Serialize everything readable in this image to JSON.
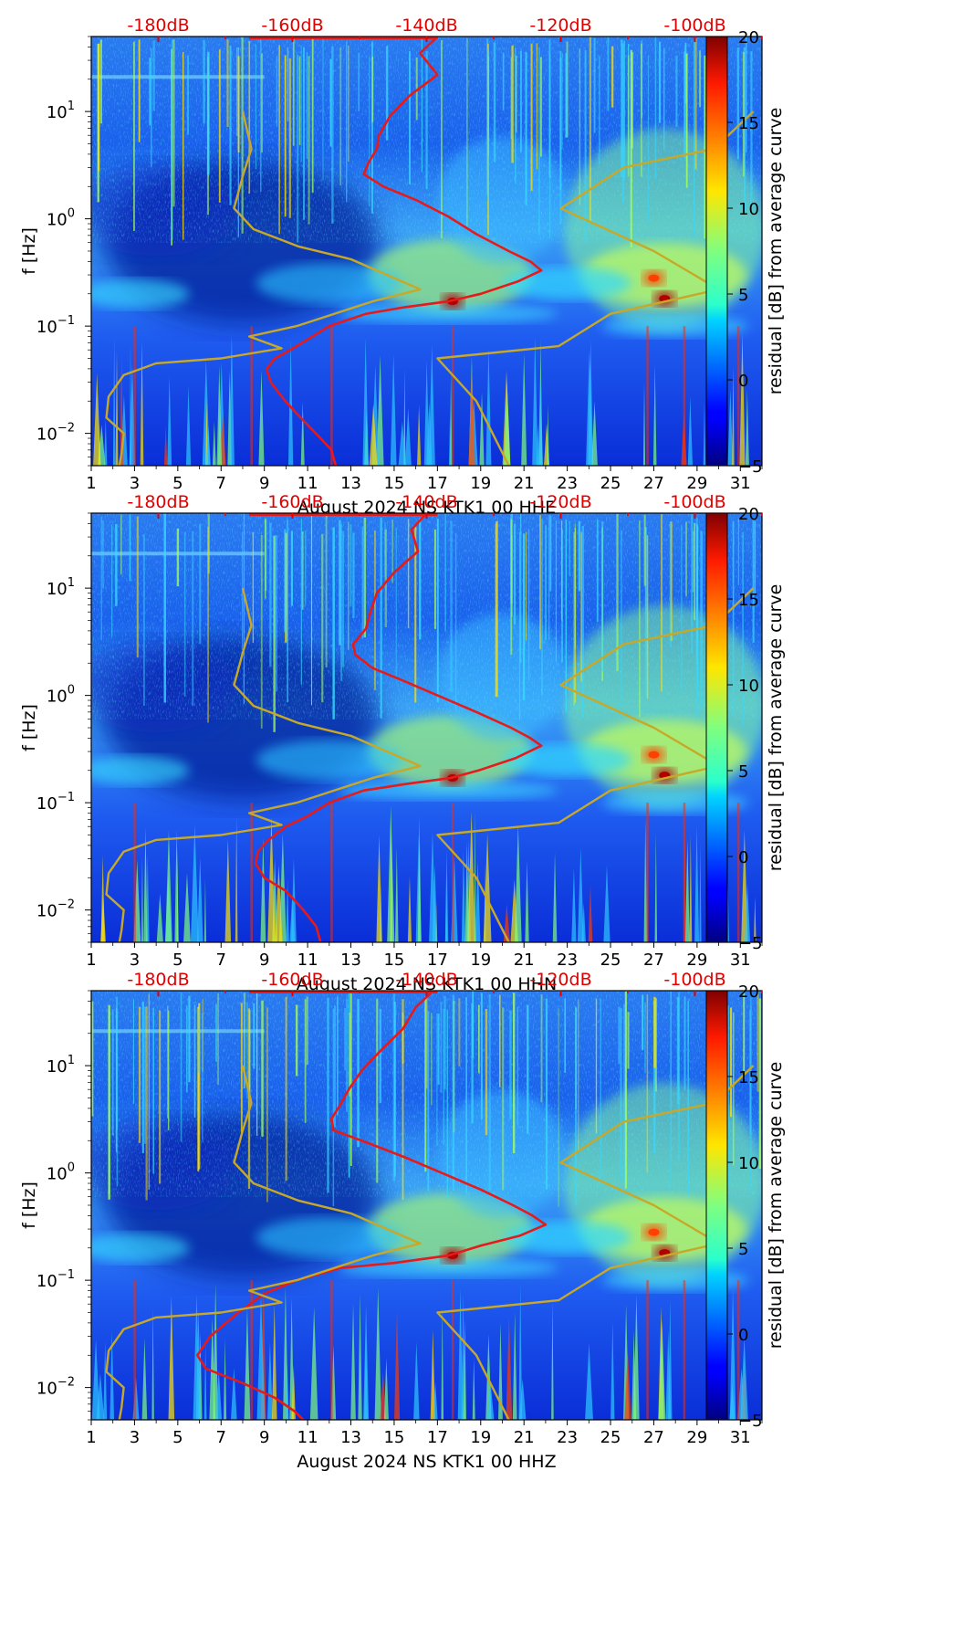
{
  "chart_data": [
    {
      "type": "heatmap",
      "subtype": "spectrogram",
      "channel": "HHE",
      "xlabel": "August 2024 NS KTK1 00 HHE",
      "ylabel": "f [Hz]",
      "x_ticks": [
        "1",
        "3",
        "5",
        "7",
        "9",
        "11",
        "13",
        "15",
        "17",
        "19",
        "21",
        "23",
        "25",
        "27",
        "29",
        "31"
      ],
      "xlim": [
        1,
        32
      ],
      "y_scale": "log",
      "ylim": [
        0.005,
        50
      ],
      "y_ticks": [
        {
          "value": 0.01,
          "base": "10",
          "exp": "−2"
        },
        {
          "value": 0.1,
          "base": "10",
          "exp": "−1"
        },
        {
          "value": 1,
          "base": "10",
          "exp": "0"
        },
        {
          "value": 10,
          "base": "10",
          "exp": "1"
        }
      ],
      "top_axis_labels": [
        "-180dB",
        "-160dB",
        "-140dB",
        "-120dB",
        "-100dB"
      ],
      "colorbar": {
        "label": "residual [dB] from average curve",
        "range": [
          -5,
          20
        ],
        "ticks": [
          "−5",
          "0",
          "5",
          "10",
          "15",
          "20"
        ],
        "colormap": "jet"
      },
      "series": [
        {
          "name": "PSD curve",
          "color": "#e81919",
          "points": [
            [
              17.0,
              50
            ],
            [
              16.2,
              35
            ],
            [
              17.0,
              22
            ],
            [
              15.7,
              14
            ],
            [
              14.8,
              9
            ],
            [
              14.3,
              6
            ],
            [
              14.2,
              4.5
            ],
            [
              13.8,
              3.3
            ],
            [
              13.6,
              2.6
            ],
            [
              14.5,
              2.0
            ],
            [
              16.0,
              1.5
            ],
            [
              17.5,
              1.05
            ],
            [
              18.8,
              0.72
            ],
            [
              20.3,
              0.5
            ],
            [
              21.3,
              0.4
            ],
            [
              21.8,
              0.33
            ],
            [
              20.7,
              0.26
            ],
            [
              19.0,
              0.2
            ],
            [
              17.5,
              0.17
            ],
            [
              15.5,
              0.15
            ],
            [
              13.7,
              0.13
            ],
            [
              12.0,
              0.1
            ],
            [
              11.0,
              0.075
            ],
            [
              10.2,
              0.06
            ],
            [
              9.5,
              0.05
            ],
            [
              9.1,
              0.04
            ],
            [
              9.3,
              0.03
            ],
            [
              9.8,
              0.022
            ],
            [
              10.4,
              0.016
            ],
            [
              11.0,
              0.012
            ],
            [
              11.6,
              0.009
            ],
            [
              12.1,
              0.007
            ],
            [
              12.3,
              0.005
            ]
          ]
        },
        {
          "name": "low noise model",
          "color": "#c8a828",
          "points": [
            [
              8.0,
              10
            ],
            [
              8.4,
              4.5
            ],
            [
              8.0,
              2.5
            ],
            [
              7.6,
              1.25
            ],
            [
              8.5,
              0.8
            ],
            [
              10.6,
              0.55
            ],
            [
              13.0,
              0.42
            ],
            [
              16.2,
              0.22
            ],
            [
              14.0,
              0.17
            ],
            [
              10.5,
              0.1
            ],
            [
              8.3,
              0.08
            ],
            [
              9.8,
              0.062
            ],
            [
              7.0,
              0.05
            ],
            [
              4.0,
              0.045
            ],
            [
              2.5,
              0.035
            ],
            [
              1.8,
              0.022
            ],
            [
              1.7,
              0.014
            ],
            [
              2.5,
              0.01
            ],
            [
              2.4,
              0.0065
            ],
            [
              2.3,
              0.005
            ]
          ]
        },
        {
          "name": "high noise model",
          "color": "#c8a828",
          "points": [
            [
              31.6,
              10
            ],
            [
              29.8,
              4.5
            ],
            [
              25.6,
              3.0
            ],
            [
              22.7,
              1.25
            ],
            [
              27.0,
              0.5
            ],
            [
              30.0,
              0.22
            ],
            [
              25.0,
              0.13
            ],
            [
              22.6,
              0.065
            ],
            [
              17.0,
              0.05
            ],
            [
              18.8,
              0.02
            ],
            [
              20.3,
              0.005
            ]
          ]
        }
      ],
      "hotspots": [
        {
          "x": 27.5,
          "y": 0.18,
          "value": 20
        },
        {
          "x": 27.0,
          "y": 0.28,
          "value": 14
        },
        {
          "x": 17.7,
          "y": 0.17,
          "value": 18
        }
      ]
    },
    {
      "type": "heatmap",
      "subtype": "spectrogram",
      "channel": "HHN",
      "xlabel": "August 2024 NS KTK1 00 HHN",
      "ylabel": "f [Hz]",
      "x_ticks": [
        "1",
        "3",
        "5",
        "7",
        "9",
        "11",
        "13",
        "15",
        "17",
        "19",
        "21",
        "23",
        "25",
        "27",
        "29",
        "31"
      ],
      "xlim": [
        1,
        32
      ],
      "y_scale": "log",
      "ylim": [
        0.005,
        50
      ],
      "y_ticks": [
        {
          "value": 0.01,
          "base": "10",
          "exp": "−2"
        },
        {
          "value": 0.1,
          "base": "10",
          "exp": "−1"
        },
        {
          "value": 1,
          "base": "10",
          "exp": "0"
        },
        {
          "value": 10,
          "base": "10",
          "exp": "1"
        }
      ],
      "top_axis_labels": [
        "-180dB",
        "-160dB",
        "-140dB",
        "-120dB",
        "-100dB"
      ],
      "colorbar": {
        "label": "residual [dB] from average curve",
        "range": [
          -5,
          20
        ],
        "ticks": [
          "−5",
          "0",
          "5",
          "10",
          "15",
          "20"
        ],
        "colormap": "jet"
      },
      "series": [
        {
          "name": "PSD curve",
          "color": "#e81919",
          "points": [
            [
              16.5,
              50
            ],
            [
              15.8,
              35
            ],
            [
              16.1,
              22
            ],
            [
              15.0,
              14
            ],
            [
              14.2,
              9
            ],
            [
              13.9,
              6
            ],
            [
              13.7,
              4.2
            ],
            [
              13.1,
              3.0
            ],
            [
              13.2,
              2.4
            ],
            [
              14.0,
              1.8
            ],
            [
              15.5,
              1.35
            ],
            [
              17.0,
              1.0
            ],
            [
              18.8,
              0.7
            ],
            [
              20.4,
              0.5
            ],
            [
              21.3,
              0.4
            ],
            [
              21.8,
              0.34
            ],
            [
              20.6,
              0.26
            ],
            [
              18.9,
              0.2
            ],
            [
              17.6,
              0.17
            ],
            [
              15.6,
              0.15
            ],
            [
              13.6,
              0.13
            ],
            [
              12.0,
              0.1
            ],
            [
              11.0,
              0.075
            ],
            [
              10.0,
              0.06
            ],
            [
              9.2,
              0.045
            ],
            [
              8.7,
              0.035
            ],
            [
              8.6,
              0.027
            ],
            [
              9.0,
              0.02
            ],
            [
              10.0,
              0.015
            ],
            [
              10.8,
              0.01
            ],
            [
              11.4,
              0.007
            ],
            [
              11.6,
              0.005
            ]
          ]
        },
        {
          "name": "low noise model",
          "color": "#c8a828",
          "points": [
            [
              8.0,
              10
            ],
            [
              8.4,
              4.5
            ],
            [
              8.0,
              2.5
            ],
            [
              7.6,
              1.25
            ],
            [
              8.5,
              0.8
            ],
            [
              10.6,
              0.55
            ],
            [
              13.0,
              0.42
            ],
            [
              16.2,
              0.22
            ],
            [
              14.0,
              0.17
            ],
            [
              10.5,
              0.1
            ],
            [
              8.3,
              0.08
            ],
            [
              9.8,
              0.062
            ],
            [
              7.0,
              0.05
            ],
            [
              4.0,
              0.045
            ],
            [
              2.5,
              0.035
            ],
            [
              1.8,
              0.022
            ],
            [
              1.7,
              0.014
            ],
            [
              2.5,
              0.01
            ],
            [
              2.4,
              0.0065
            ],
            [
              2.3,
              0.005
            ]
          ]
        },
        {
          "name": "high noise model",
          "color": "#c8a828",
          "points": [
            [
              31.6,
              10
            ],
            [
              29.8,
              4.5
            ],
            [
              25.6,
              3.0
            ],
            [
              22.7,
              1.25
            ],
            [
              27.0,
              0.5
            ],
            [
              30.0,
              0.22
            ],
            [
              25.0,
              0.13
            ],
            [
              22.6,
              0.065
            ],
            [
              17.0,
              0.05
            ],
            [
              18.8,
              0.02
            ],
            [
              20.3,
              0.005
            ]
          ]
        }
      ],
      "hotspots": [
        {
          "x": 27.5,
          "y": 0.18,
          "value": 20
        },
        {
          "x": 27.0,
          "y": 0.28,
          "value": 14
        },
        {
          "x": 17.7,
          "y": 0.17,
          "value": 18
        }
      ]
    },
    {
      "type": "heatmap",
      "subtype": "spectrogram",
      "channel": "HHZ",
      "xlabel": "August 2024 NS KTK1 00 HHZ",
      "ylabel": "f [Hz]",
      "x_ticks": [
        "1",
        "3",
        "5",
        "7",
        "9",
        "11",
        "13",
        "15",
        "17",
        "19",
        "21",
        "23",
        "25",
        "27",
        "29",
        "31"
      ],
      "xlim": [
        1,
        32
      ],
      "y_scale": "log",
      "ylim": [
        0.005,
        50
      ],
      "y_ticks": [
        {
          "value": 0.01,
          "base": "10",
          "exp": "−2"
        },
        {
          "value": 0.1,
          "base": "10",
          "exp": "−1"
        },
        {
          "value": 1,
          "base": "10",
          "exp": "0"
        },
        {
          "value": 10,
          "base": "10",
          "exp": "1"
        }
      ],
      "top_axis_labels": [
        "-180dB",
        "-160dB",
        "-140dB",
        "-120dB",
        "-100dB"
      ],
      "colorbar": {
        "label": "residual [dB] from average curve",
        "range": [
          -5,
          20
        ],
        "ticks": [
          "−5",
          "0",
          "5",
          "10",
          "15",
          "20"
        ],
        "colormap": "jet"
      },
      "series": [
        {
          "name": "PSD curve",
          "color": "#e81919",
          "points": [
            [
              16.8,
              50
            ],
            [
              16.0,
              35
            ],
            [
              15.4,
              22
            ],
            [
              14.4,
              14
            ],
            [
              13.5,
              9
            ],
            [
              12.9,
              6
            ],
            [
              12.5,
              4.3
            ],
            [
              12.1,
              3.2
            ],
            [
              12.2,
              2.5
            ],
            [
              13.8,
              1.9
            ],
            [
              15.5,
              1.4
            ],
            [
              17.2,
              1.0
            ],
            [
              19.0,
              0.7
            ],
            [
              20.5,
              0.5
            ],
            [
              21.4,
              0.4
            ],
            [
              22.0,
              0.33
            ],
            [
              20.8,
              0.26
            ],
            [
              19.0,
              0.21
            ],
            [
              17.5,
              0.17
            ],
            [
              15.0,
              0.145
            ],
            [
              12.5,
              0.13
            ],
            [
              10.5,
              0.1
            ],
            [
              9.0,
              0.075
            ],
            [
              7.8,
              0.05
            ],
            [
              6.5,
              0.03
            ],
            [
              5.9,
              0.02
            ],
            [
              6.3,
              0.015
            ],
            [
              8.0,
              0.011
            ],
            [
              9.5,
              0.008
            ],
            [
              10.4,
              0.006
            ],
            [
              10.8,
              0.005
            ]
          ]
        },
        {
          "name": "low noise model",
          "color": "#c8a828",
          "points": [
            [
              8.0,
              10
            ],
            [
              8.4,
              4.5
            ],
            [
              8.0,
              2.5
            ],
            [
              7.6,
              1.25
            ],
            [
              8.5,
              0.8
            ],
            [
              10.6,
              0.55
            ],
            [
              13.0,
              0.42
            ],
            [
              16.2,
              0.22
            ],
            [
              14.0,
              0.17
            ],
            [
              10.5,
              0.1
            ],
            [
              8.3,
              0.08
            ],
            [
              9.8,
              0.062
            ],
            [
              7.0,
              0.05
            ],
            [
              4.0,
              0.045
            ],
            [
              2.5,
              0.035
            ],
            [
              1.8,
              0.022
            ],
            [
              1.7,
              0.014
            ],
            [
              2.5,
              0.01
            ],
            [
              2.4,
              0.0065
            ],
            [
              2.3,
              0.005
            ]
          ]
        },
        {
          "name": "high noise model",
          "color": "#c8a828",
          "points": [
            [
              31.6,
              10
            ],
            [
              29.8,
              4.5
            ],
            [
              25.6,
              3.0
            ],
            [
              22.7,
              1.25
            ],
            [
              27.0,
              0.5
            ],
            [
              30.0,
              0.22
            ],
            [
              25.0,
              0.13
            ],
            [
              22.6,
              0.065
            ],
            [
              17.0,
              0.05
            ],
            [
              18.8,
              0.02
            ],
            [
              20.3,
              0.005
            ]
          ]
        }
      ],
      "hotspots": [
        {
          "x": 27.5,
          "y": 0.18,
          "value": 20
        },
        {
          "x": 27.0,
          "y": 0.28,
          "value": 14
        },
        {
          "x": 17.7,
          "y": 0.17,
          "value": 18
        }
      ]
    }
  ]
}
